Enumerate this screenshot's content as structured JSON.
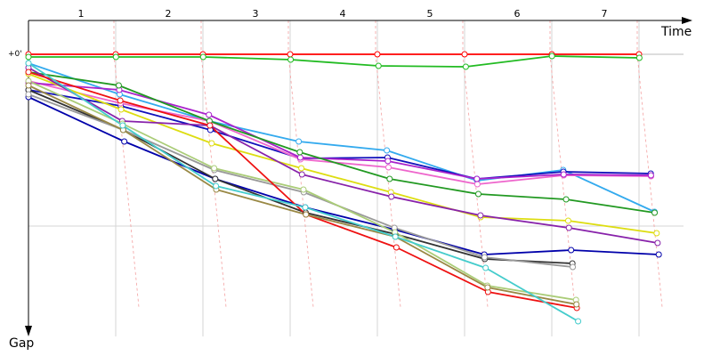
{
  "chart_data": {
    "type": "line",
    "xlabel": "Time",
    "ylabel": "Gap",
    "zero_label": "+0'",
    "laps": [
      "1",
      "2",
      "3",
      "4",
      "5",
      "6",
      "7"
    ],
    "grid": true,
    "series": [
      {
        "color": "#ff0000",
        "points": [
          [
            0,
            0
          ],
          [
            1,
            0
          ],
          [
            2,
            0
          ],
          [
            3,
            0
          ],
          [
            4,
            0
          ],
          [
            5,
            0
          ],
          [
            6,
            0
          ],
          [
            7,
            0
          ]
        ]
      },
      {
        "color": "#22bb22",
        "points": [
          [
            0,
            3
          ],
          [
            1,
            3
          ],
          [
            2,
            3
          ],
          [
            3,
            6
          ],
          [
            4,
            13
          ],
          [
            5,
            14
          ],
          [
            6,
            2
          ],
          [
            7,
            4
          ]
        ]
      },
      {
        "color": "#33aaee",
        "points": [
          [
            0,
            10
          ],
          [
            1,
            45
          ],
          [
            2,
            75
          ],
          [
            3,
            98
          ],
          [
            4,
            108
          ],
          [
            5,
            142
          ],
          [
            6,
            130
          ],
          [
            7,
            177
          ]
        ]
      },
      {
        "color": "#1111bb",
        "points": [
          [
            0,
            40
          ],
          [
            1,
            58
          ],
          [
            2,
            85
          ],
          [
            3,
            117
          ],
          [
            4,
            116
          ],
          [
            5,
            140
          ],
          [
            6,
            132
          ],
          [
            7,
            134
          ]
        ]
      },
      {
        "color": "#ee66cc",
        "points": [
          [
            0,
            30
          ],
          [
            1,
            55
          ],
          [
            2,
            75
          ],
          [
            3,
            118
          ],
          [
            4,
            127
          ],
          [
            5,
            146
          ],
          [
            6,
            136
          ],
          [
            7,
            137
          ]
        ]
      },
      {
        "color": "#aa22cc",
        "points": [
          [
            0,
            32
          ],
          [
            1,
            40
          ],
          [
            2,
            68
          ],
          [
            3,
            116
          ],
          [
            4,
            120
          ],
          [
            5,
            140
          ],
          [
            6,
            135
          ],
          [
            7,
            136
          ]
        ]
      },
      {
        "color": "#229922",
        "points": [
          [
            0,
            20
          ],
          [
            1,
            35
          ],
          [
            2,
            75
          ],
          [
            3,
            110
          ],
          [
            4,
            140
          ],
          [
            5,
            157
          ],
          [
            6,
            163
          ],
          [
            7,
            178
          ]
        ]
      },
      {
        "color": "#dddd11",
        "points": [
          [
            0,
            22
          ],
          [
            1,
            62
          ],
          [
            2,
            100
          ],
          [
            3,
            128
          ],
          [
            4,
            155
          ],
          [
            5,
            183
          ],
          [
            6,
            187
          ],
          [
            7,
            201
          ]
        ]
      },
      {
        "color": "#8822aa",
        "points": [
          [
            0,
            15
          ],
          [
            1,
            75
          ],
          [
            2,
            80
          ],
          [
            3,
            135
          ],
          [
            4,
            160
          ],
          [
            5,
            181
          ],
          [
            6,
            195
          ],
          [
            7,
            212
          ]
        ]
      },
      {
        "color": "#0000aa",
        "points": [
          [
            0,
            48
          ],
          [
            1,
            98
          ],
          [
            2,
            140
          ],
          [
            3,
            172
          ],
          [
            4,
            197
          ],
          [
            5,
            225
          ],
          [
            6,
            220
          ],
          [
            7,
            225
          ]
        ]
      },
      {
        "color": "#333333",
        "points": [
          [
            0,
            40
          ],
          [
            1,
            85
          ],
          [
            2,
            140
          ],
          [
            3,
            178
          ],
          [
            4,
            202
          ],
          [
            5,
            230
          ],
          [
            6,
            235
          ]
        ]
      },
      {
        "color": "#999999",
        "points": [
          [
            0,
            45
          ],
          [
            1,
            85
          ],
          [
            2,
            130
          ],
          [
            3,
            155
          ],
          [
            4,
            195
          ],
          [
            5,
            228
          ],
          [
            6,
            239
          ]
        ]
      },
      {
        "color": "#aacc77",
        "points": [
          [
            0,
            30
          ],
          [
            1,
            78
          ],
          [
            2,
            128
          ],
          [
            3,
            152
          ],
          [
            4,
            200
          ],
          [
            5,
            260
          ],
          [
            6,
            276
          ]
        ]
      },
      {
        "color": "#ee1111",
        "points": [
          [
            0,
            20
          ],
          [
            1,
            52
          ],
          [
            2,
            80
          ],
          [
            3,
            180
          ],
          [
            4,
            217
          ],
          [
            5,
            267
          ],
          [
            6,
            285
          ]
        ]
      },
      {
        "color": "#998844",
        "points": [
          [
            0,
            35
          ],
          [
            1,
            85
          ],
          [
            2,
            152
          ],
          [
            3,
            180
          ],
          [
            4,
            205
          ],
          [
            5,
            262
          ],
          [
            6,
            281
          ]
        ]
      },
      {
        "color": "#44cccc",
        "points": [
          [
            0,
            10
          ],
          [
            1,
            80
          ],
          [
            2,
            148
          ],
          [
            3,
            172
          ],
          [
            4,
            205
          ],
          [
            5,
            240
          ],
          [
            6,
            300
          ]
        ]
      }
    ]
  }
}
